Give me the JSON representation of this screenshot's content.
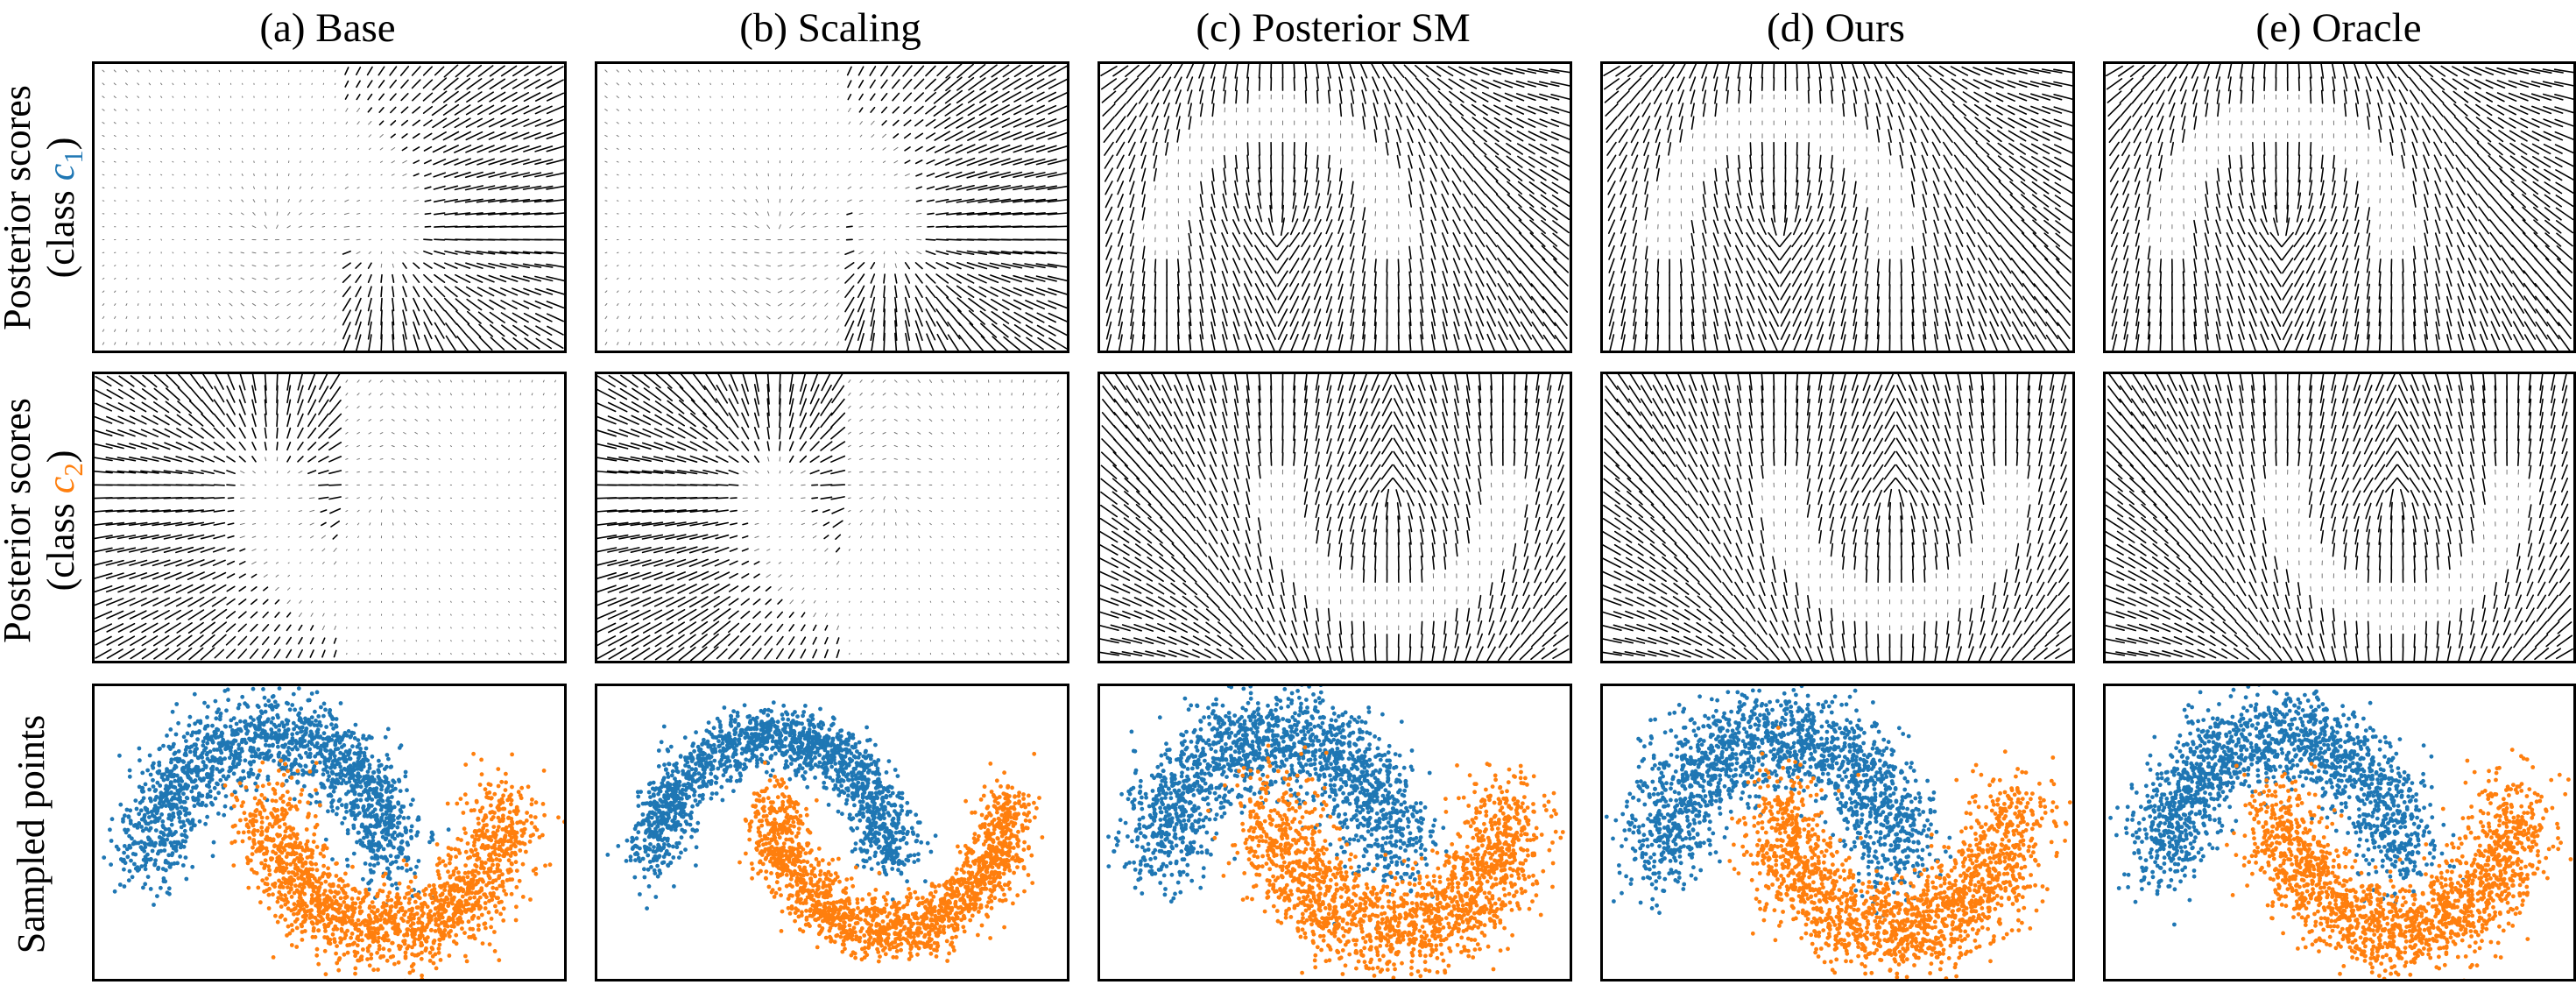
{
  "columns": [
    {
      "id": "base",
      "title": "(a) Base"
    },
    {
      "id": "scaling",
      "title": "(b) Scaling"
    },
    {
      "id": "posterior_sm",
      "title": "(c) Posterior SM"
    },
    {
      "id": "ours",
      "title": "(d) Ours"
    },
    {
      "id": "oracle",
      "title": "(e) Oracle"
    }
  ],
  "rows": [
    {
      "id": "scores_c1",
      "label_line1": "Posterior scores",
      "label_line2_prefix": "(class ",
      "class_symbol": "c",
      "class_subscript": "1",
      "label_line2_suffix": ")",
      "class_color": "#1f77b4"
    },
    {
      "id": "scores_c2",
      "label_line1": "Posterior scores",
      "label_line2_prefix": "(class ",
      "class_symbol": "c",
      "class_subscript": "2",
      "label_line2_suffix": ")",
      "class_color": "#ff7f0e"
    },
    {
      "id": "samples",
      "label_line1": "Sampled points"
    }
  ],
  "colors": {
    "class_c1": "#1f77b4",
    "class_c2": "#ff7f0e",
    "arrows": "#000000",
    "frame": "#000000"
  },
  "chart_data": [
    {
      "type": "quiver",
      "row": "Posterior scores (class c1)",
      "panels": [
        "(a) Base",
        "(b) Scaling",
        "(c) Posterior SM",
        "(d) Ours",
        "(e) Oracle"
      ],
      "grid_points": {
        "nx": 40,
        "ny": 22
      },
      "field_description": "score vectors of class c1 posterior; Base/Scaling concentrated around the upper moon, Posterior SM/Ours/Oracle smooth upward-converging field",
      "axes_visible": false
    },
    {
      "type": "quiver",
      "row": "Posterior scores (class c2)",
      "panels": [
        "(a) Base",
        "(b) Scaling",
        "(c) Posterior SM",
        "(d) Ours",
        "(e) Oracle"
      ],
      "grid_points": {
        "nx": 40,
        "ny": 22
      },
      "field_description": "score vectors of class c2 posterior; Base/Scaling strong on left half, Posterior SM/Ours/Oracle smooth field pointing toward lower moon",
      "axes_visible": false
    },
    {
      "type": "scatter",
      "row": "Sampled points",
      "panels": [
        "(a) Base",
        "(b) Scaling",
        "(c) Posterior SM",
        "(d) Ours",
        "(e) Oracle"
      ],
      "series": [
        {
          "class": "c1",
          "color": "#1f77b4",
          "shape": "upper moon",
          "center": [
            0.0,
            0.0
          ],
          "radius": 1.0,
          "arc_deg": [
            0,
            180
          ],
          "approx_points": 2500
        },
        {
          "class": "c2",
          "color": "#ff7f0e",
          "shape": "lower moon",
          "center": [
            1.0,
            0.5
          ],
          "radius": 1.0,
          "arc_deg": [
            180,
            360
          ],
          "approx_points": 2500
        }
      ],
      "noise_per_panel": [
        0.17,
        0.12,
        0.2,
        0.19,
        0.18
      ],
      "xlim": [
        -1.5,
        2.5
      ],
      "ylim": [
        -0.9,
        1.4
      ],
      "axes_visible": false
    }
  ]
}
